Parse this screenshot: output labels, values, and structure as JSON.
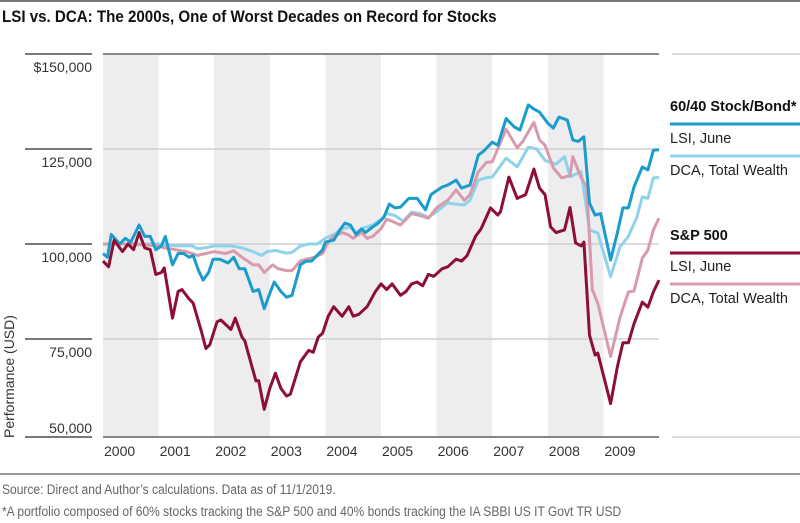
{
  "colors": {
    "lsi_6040": "#1a9ccc",
    "dca_6040": "#8fd3ea",
    "lsi_sp500": "#8e0f35",
    "dca_sp500": "#d99aab",
    "band": "#ededef",
    "grid": "#c8c8c8"
  },
  "chart_data": {
    "type": "line",
    "title": "LSI vs. DCA: The 2000s, One of Worst Decades on Record for Stocks",
    "xlabel": "",
    "ylabel": "Performance (USD)",
    "xlim": [
      2000,
      2010
    ],
    "ylim": [
      50000,
      150000
    ],
    "x_ticks": [
      "2000",
      "2001",
      "2002",
      "2003",
      "2004",
      "2005",
      "2006",
      "2007",
      "2008",
      "2009"
    ],
    "y_ticks": [
      {
        "value": 150000,
        "label": "$150,000"
      },
      {
        "value": 125000,
        "label": "125,000"
      },
      {
        "value": 100000,
        "label": "100,000"
      },
      {
        "value": 75000,
        "label": "75,000"
      },
      {
        "value": 50000,
        "label": "50,000"
      }
    ],
    "grid": true,
    "shaded_years": [
      2000,
      2002,
      2004,
      2006,
      2008
    ],
    "legend_position": "right",
    "legend_groups": [
      {
        "heading": "60/40 Stock/Bond*",
        "entries": [
          "LSI, June",
          "DCA, Total Wealth"
        ]
      },
      {
        "heading": "S&P 500",
        "entries": [
          "LSI, June",
          "DCA, Total Wealth"
        ]
      }
    ],
    "series": [
      {
        "name": "60/40 Stock/Bond* DCA, Total Wealth",
        "color_key": "dca_6040",
        "x": [
          2000.0,
          2000.5,
          2001.0,
          2001.3,
          2001.6,
          2001.7,
          2001.85,
          2002.0,
          2002.3,
          2002.5,
          2002.7,
          2002.85,
          2002.95,
          2003.1,
          2003.3,
          2003.4,
          2003.55,
          2003.7,
          2003.85,
          2004.0,
          2004.15,
          2004.3,
          2004.45,
          2004.55,
          2004.7,
          2004.85,
          2005.0,
          2005.1,
          2005.25,
          2005.4,
          2005.55,
          2005.7,
          2005.85,
          2006.0,
          2006.2,
          2006.35,
          2006.5,
          2006.6,
          2006.75,
          2006.9,
          2007.0,
          2007.25,
          2007.45,
          2007.65,
          2007.8,
          2007.95,
          2008.15,
          2008.3,
          2008.4,
          2008.6,
          2008.75,
          2008.9,
          2009.13,
          2009.3,
          2009.45,
          2009.6,
          2009.7,
          2009.8,
          2009.9,
          2010.0
        ],
        "y": [
          100000,
          100000,
          100000,
          99500,
          99500,
          98800,
          99000,
          99500,
          99500,
          99000,
          98000,
          97000,
          98000,
          98300,
          97600,
          97800,
          99500,
          100000,
          100000,
          101500,
          102500,
          104000,
          104500,
          103000,
          104300,
          105000,
          106500,
          108000,
          107500,
          106000,
          108400,
          108000,
          107000,
          108500,
          110800,
          110500,
          110300,
          111500,
          116800,
          117500,
          117600,
          122600,
          120300,
          125500,
          125000,
          122000,
          121000,
          123000,
          117700,
          119000,
          103700,
          102900,
          91400,
          99300,
          102000,
          107000,
          112400,
          112000,
          117400,
          117500
        ]
      },
      {
        "name": "S&P 500 DCA, Total Wealth",
        "color_key": "dca_sp500",
        "x": [
          2000.0,
          2000.5,
          2001.0,
          2001.1,
          2001.3,
          2001.5,
          2001.7,
          2001.85,
          2002.0,
          2002.2,
          2002.35,
          2002.5,
          2002.7,
          2002.8,
          2002.9,
          2003.05,
          2003.15,
          2003.3,
          2003.4,
          2003.55,
          2003.65,
          2003.8,
          2003.95,
          2004.05,
          2004.15,
          2004.3,
          2004.4,
          2004.5,
          2004.65,
          2004.75,
          2004.85,
          2005.0,
          2005.1,
          2005.2,
          2005.35,
          2005.55,
          2005.7,
          2005.85,
          2006.0,
          2006.2,
          2006.35,
          2006.5,
          2006.6,
          2006.75,
          2006.9,
          2007.0,
          2007.25,
          2007.45,
          2007.55,
          2007.75,
          2007.85,
          2007.95,
          2008.1,
          2008.25,
          2008.4,
          2008.45,
          2008.6,
          2008.7,
          2008.8,
          2008.9,
          2009.13,
          2009.3,
          2009.45,
          2009.55,
          2009.7,
          2009.8,
          2009.9,
          2010.0
        ],
        "y": [
          100000,
          100000,
          99500,
          99000,
          98500,
          98000,
          97000,
          97500,
          98000,
          97500,
          98200,
          96500,
          94500,
          94500,
          92500,
          94500,
          93500,
          93000,
          93000,
          95500,
          96000,
          96500,
          97500,
          100500,
          102000,
          103000,
          102500,
          101500,
          103000,
          101500,
          102000,
          104000,
          106500,
          106000,
          105000,
          108000,
          107500,
          106800,
          109500,
          111500,
          114200,
          111500,
          113000,
          119000,
          121500,
          121600,
          130200,
          125300,
          127000,
          132000,
          127400,
          126000,
          120000,
          117400,
          118000,
          123000,
          117400,
          115000,
          88000,
          84400,
          70400,
          80800,
          87400,
          87600,
          96300,
          98400,
          103700,
          106800
        ]
      },
      {
        "name": "60/40 Stock/Bond* LSI, June",
        "color_key": "lsi_6040",
        "x": [
          2000.0,
          2000.08,
          2000.15,
          2000.3,
          2000.4,
          2000.5,
          2000.65,
          2000.75,
          2000.85,
          2000.95,
          2001.05,
          2001.12,
          2001.25,
          2001.35,
          2001.45,
          2001.55,
          2001.62,
          2001.72,
          2001.8,
          2001.9,
          2001.98,
          2002.1,
          2002.25,
          2002.35,
          2002.45,
          2002.55,
          2002.7,
          2002.8,
          2002.9,
          2003.0,
          2003.08,
          2003.2,
          2003.3,
          2003.4,
          2003.55,
          2003.65,
          2003.75,
          2003.85,
          2003.95,
          2004.0,
          2004.15,
          2004.25,
          2004.35,
          2004.45,
          2004.55,
          2004.65,
          2004.72,
          2004.85,
          2004.95,
          2005.05,
          2005.15,
          2005.25,
          2005.35,
          2005.5,
          2005.65,
          2005.8,
          2005.9,
          2006.0,
          2006.1,
          2006.2,
          2006.35,
          2006.45,
          2006.6,
          2006.75,
          2006.85,
          2007.0,
          2007.1,
          2007.25,
          2007.4,
          2007.5,
          2007.65,
          2007.75,
          2007.85,
          2008.0,
          2008.1,
          2008.2,
          2008.35,
          2008.45,
          2008.55,
          2008.65,
          2008.75,
          2008.85,
          2008.95,
          2009.13,
          2009.25,
          2009.35,
          2009.45,
          2009.55,
          2009.7,
          2009.8,
          2009.9,
          2010.0
        ],
        "y": [
          97500,
          96500,
          102500,
          100000,
          101500,
          100500,
          105000,
          102000,
          102000,
          98500,
          99500,
          102000,
          94500,
          97500,
          97500,
          96500,
          97000,
          93000,
          90500,
          92500,
          96000,
          96000,
          95000,
          96500,
          93500,
          93500,
          87500,
          88000,
          83000,
          87000,
          90000,
          87500,
          86000,
          86500,
          94500,
          95500,
          95500,
          97000,
          98500,
          100500,
          101000,
          103500,
          105500,
          105000,
          102500,
          104000,
          103000,
          104500,
          105500,
          107000,
          110500,
          109500,
          109700,
          112000,
          112000,
          109000,
          113000,
          114000,
          115000,
          115500,
          116800,
          114700,
          115500,
          123400,
          124500,
          126800,
          126000,
          133000,
          130800,
          130000,
          136600,
          135500,
          134700,
          131800,
          130500,
          133400,
          132600,
          127400,
          127000,
          128200,
          110800,
          107600,
          108000,
          95800,
          102900,
          109500,
          109500,
          115000,
          120300,
          119500,
          124700,
          124800
        ]
      },
      {
        "name": "S&P 500 LSI, June",
        "color_key": "lsi_sp500",
        "x": [
          2000.0,
          2000.1,
          2000.2,
          2000.35,
          2000.45,
          2000.55,
          2000.65,
          2000.75,
          2000.85,
          2000.95,
          2001.05,
          2001.1,
          2001.25,
          2001.35,
          2001.42,
          2001.55,
          2001.62,
          2001.77,
          2001.85,
          2001.92,
          2002.05,
          2002.12,
          2002.3,
          2002.38,
          2002.5,
          2002.55,
          2002.75,
          2002.8,
          2002.9,
          2003.0,
          2003.1,
          2003.2,
          2003.3,
          2003.37,
          2003.55,
          2003.7,
          2003.78,
          2003.87,
          2003.95,
          2004.05,
          2004.15,
          2004.3,
          2004.42,
          2004.5,
          2004.6,
          2004.75,
          2004.9,
          2005.0,
          2005.1,
          2005.2,
          2005.35,
          2005.45,
          2005.55,
          2005.65,
          2005.75,
          2005.85,
          2005.95,
          2006.1,
          2006.2,
          2006.35,
          2006.45,
          2006.55,
          2006.7,
          2006.8,
          2006.97,
          2007.1,
          2007.15,
          2007.3,
          2007.45,
          2007.6,
          2007.75,
          2007.85,
          2007.95,
          2008.05,
          2008.15,
          2008.3,
          2008.4,
          2008.5,
          2008.6,
          2008.65,
          2008.75,
          2008.85,
          2008.9,
          2009.13,
          2009.25,
          2009.35,
          2009.45,
          2009.55,
          2009.7,
          2009.8,
          2009.9,
          2010.0
        ],
        "y": [
          95500,
          94000,
          101000,
          98000,
          100000,
          98500,
          103000,
          99000,
          98500,
          92000,
          92500,
          93700,
          80500,
          87500,
          88000,
          85500,
          84500,
          77000,
          72500,
          73500,
          79500,
          80000,
          77500,
          80500,
          75500,
          74500,
          64000,
          64000,
          56500,
          62000,
          66000,
          62000,
          60000,
          60500,
          69000,
          72000,
          71500,
          75500,
          76500,
          81000,
          83500,
          81000,
          83500,
          81000,
          81500,
          83500,
          87500,
          89500,
          88000,
          89500,
          86500,
          87500,
          89500,
          90000,
          89000,
          92000,
          91500,
          93500,
          94000,
          96000,
          95500,
          97000,
          102000,
          104000,
          109500,
          107600,
          108500,
          117600,
          112000,
          113000,
          119700,
          114700,
          113000,
          104500,
          103000,
          103700,
          109600,
          100300,
          99500,
          100500,
          76000,
          70800,
          71300,
          58000,
          67600,
          74000,
          74000,
          79000,
          84700,
          83400,
          87400,
          90500
        ]
      }
    ]
  },
  "footer": {
    "source": "Source: Direct and Author’s calculations. Data as of 11/1/2019.",
    "note": "*A portfolio composed of 60% stocks tracking the S&P 500 and 40% bonds tracking the IA SBBI US IT Govt TR USD"
  }
}
